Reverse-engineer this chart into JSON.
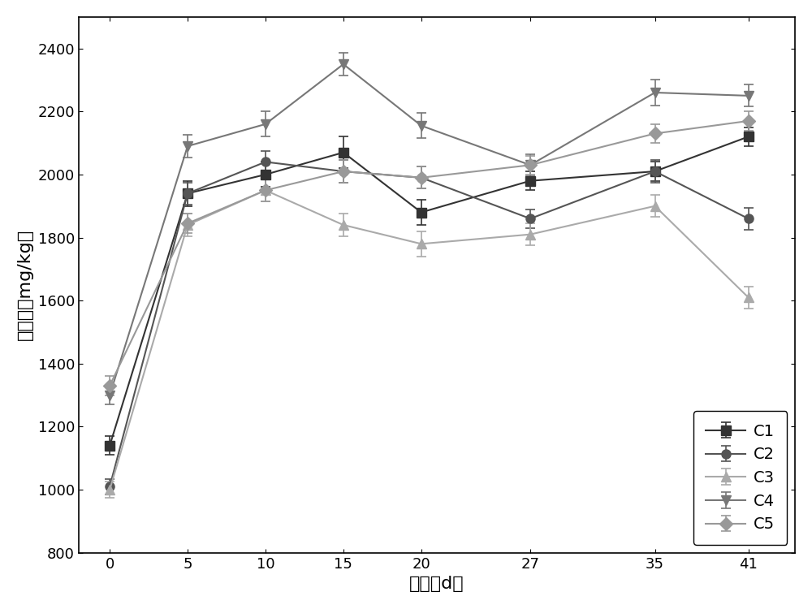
{
  "title": "",
  "xlabel": "时间（d）",
  "ylabel": "有效磷（mg/kg）",
  "xlim": [
    -2,
    44
  ],
  "ylim": [
    800,
    2500
  ],
  "yticks": [
    800,
    1000,
    1200,
    1400,
    1600,
    1800,
    2000,
    2200,
    2400
  ],
  "xticks": [
    0,
    5,
    10,
    15,
    20,
    27,
    35,
    41
  ],
  "series": {
    "C1": {
      "x": [
        0,
        5,
        10,
        15,
        20,
        27,
        35,
        41
      ],
      "y": [
        1140,
        1940,
        2000,
        2070,
        1880,
        1980,
        2010,
        2120
      ],
      "yerr": [
        30,
        40,
        40,
        50,
        40,
        30,
        30,
        30
      ],
      "color": "#333333",
      "marker": "s",
      "linestyle": "-"
    },
    "C2": {
      "x": [
        0,
        5,
        10,
        15,
        20,
        27,
        35,
        41
      ],
      "y": [
        1010,
        1940,
        2040,
        2010,
        1990,
        1860,
        2010,
        1860
      ],
      "yerr": [
        25,
        35,
        35,
        35,
        35,
        30,
        35,
        35
      ],
      "color": "#555555",
      "marker": "o",
      "linestyle": "-"
    },
    "C3": {
      "x": [
        0,
        5,
        10,
        15,
        20,
        27,
        35,
        41
      ],
      "y": [
        1000,
        1840,
        1950,
        1840,
        1780,
        1810,
        1900,
        1610
      ],
      "yerr": [
        25,
        35,
        35,
        35,
        40,
        35,
        35,
        35
      ],
      "color": "#aaaaaa",
      "marker": "^",
      "linestyle": "-"
    },
    "C4": {
      "x": [
        0,
        5,
        10,
        15,
        20,
        27,
        35,
        41
      ],
      "y": [
        1300,
        2090,
        2160,
        2350,
        2155,
        2030,
        2260,
        2250
      ],
      "yerr": [
        30,
        35,
        40,
        35,
        40,
        35,
        40,
        35
      ],
      "color": "#777777",
      "marker": "v",
      "linestyle": "-"
    },
    "C5": {
      "x": [
        0,
        5,
        10,
        15,
        20,
        27,
        35,
        41
      ],
      "y": [
        1330,
        1845,
        1950,
        2010,
        1990,
        2030,
        2130,
        2170
      ],
      "yerr": [
        30,
        30,
        35,
        35,
        35,
        30,
        30,
        30
      ],
      "color": "#999999",
      "marker": "D",
      "linestyle": "-"
    }
  },
  "legend_fontsize": 14,
  "axis_fontsize": 16,
  "tick_fontsize": 13,
  "linewidth": 1.5,
  "markersize": 8,
  "figure_facecolor": "#ffffff",
  "axes_facecolor": "#ffffff"
}
